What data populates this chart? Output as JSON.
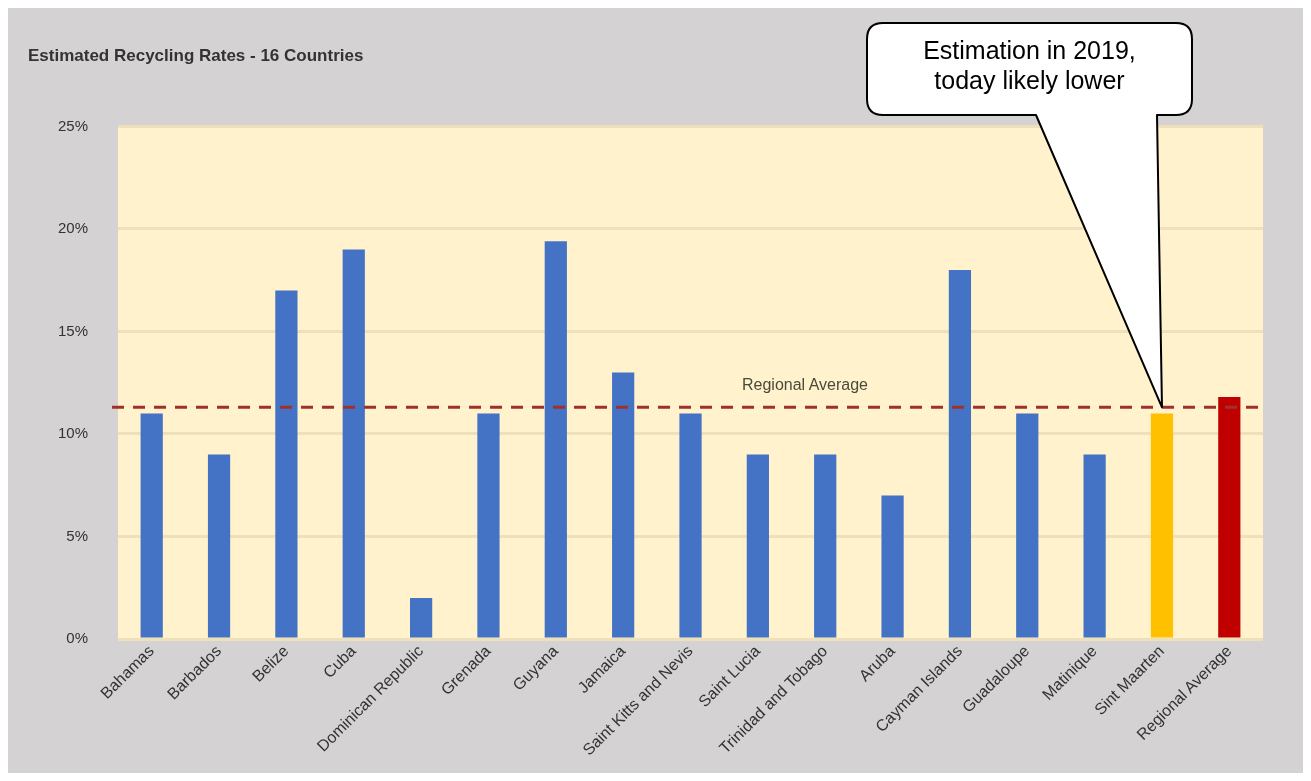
{
  "chart_data": {
    "type": "bar",
    "title": "Estimated Recycling Rates - 16 Countries",
    "categories": [
      "Bahamas",
      "Barbados",
      "Belize",
      "Cuba",
      "Dominican Republic",
      "Grenada",
      "Guyana",
      "Jamaica",
      "Saint Kitts and Nevis",
      "Saint Lucia",
      "Trinidad and Tobago",
      "Aruba",
      "Cayman Islands",
      "Guadaloupe",
      "Matinique",
      "Sint Maarten",
      "Regional Average"
    ],
    "values": [
      11,
      9,
      17,
      19,
      2,
      11,
      19.4,
      13,
      11,
      9,
      9,
      7,
      18,
      11,
      9,
      11,
      11.8
    ],
    "colors": [
      "#4472c4",
      "#4472c4",
      "#4472c4",
      "#4472c4",
      "#4472c4",
      "#4472c4",
      "#4472c4",
      "#4472c4",
      "#4472c4",
      "#4472c4",
      "#4472c4",
      "#4472c4",
      "#4472c4",
      "#4472c4",
      "#4472c4",
      "#ffc000",
      "#c00000"
    ],
    "ylim": [
      0,
      25
    ],
    "yticks": [
      {
        "value": 0,
        "label": "0%"
      },
      {
        "value": 5,
        "label": "5%"
      },
      {
        "value": 10,
        "label": "10%"
      },
      {
        "value": 15,
        "label": "15%"
      },
      {
        "value": 20,
        "label": "20%"
      },
      {
        "value": 25,
        "label": "25%"
      }
    ],
    "grid": "y",
    "ref_lines": [
      {
        "axis": "y",
        "value": 11.3,
        "label": "Regional Average",
        "color": "#a0302a",
        "line_style": "dashed"
      }
    ],
    "annotations": [
      "Estimation in 2019, today likely lower"
    ]
  }
}
